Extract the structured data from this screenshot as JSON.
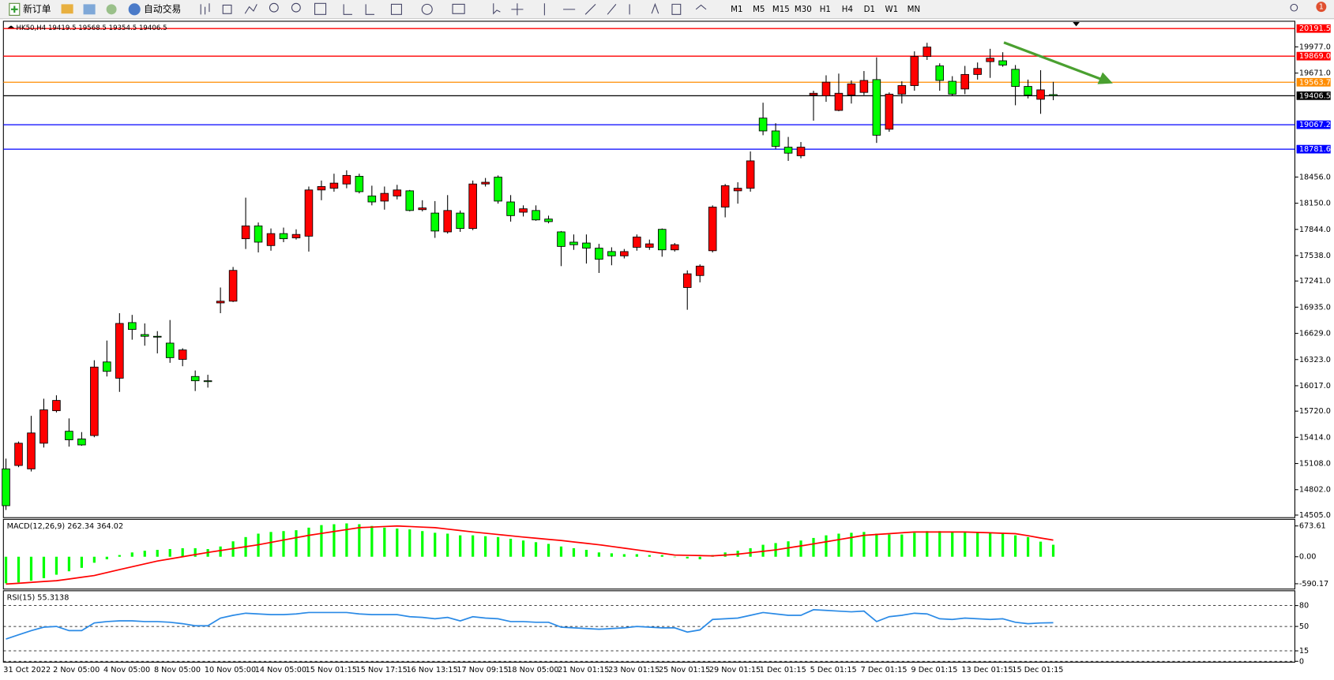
{
  "toolbar": {
    "new_order": "新订单",
    "auto_trading": "自动交易",
    "timeframes": [
      "M1",
      "M5",
      "M15",
      "M30",
      "H1",
      "H4",
      "D1",
      "W1",
      "MN"
    ],
    "notification": "1"
  },
  "chart_data": [
    {
      "type": "candlestick",
      "title": "HK50,H4  19419.5 19568.5 19354.5 19406.5",
      "categories": [
        "31 Oct 2022",
        null,
        null,
        null,
        "2 Nov 05:00",
        null,
        null,
        null,
        "4 Nov 05:00",
        null,
        null,
        null,
        "8 Nov 05:00",
        null,
        null,
        null,
        "10 Nov 05:00",
        null,
        null,
        null,
        "14 Nov 05:00",
        null,
        null,
        null,
        "15 Nov 01:15",
        null,
        null,
        null,
        "15 Nov 17:15",
        null,
        null,
        null,
        "16 Nov 13:15",
        null,
        null,
        null,
        "17 Nov 09:15",
        null,
        null,
        null,
        "18 Nov 05:00",
        null,
        null,
        null,
        "21 Nov 01:15",
        null,
        null,
        null,
        "23 Nov 01:15",
        null,
        null,
        null,
        "25 Nov 01:15",
        null,
        null,
        null,
        "29 Nov 01:15",
        null,
        null,
        null,
        "1 Dec 01:15",
        null,
        null,
        null,
        "5 Dec 01:15",
        null,
        null,
        null,
        "7 Dec 01:15",
        null,
        null,
        null,
        "9 Dec 01:15",
        null,
        null,
        null,
        "13 Dec 01:15",
        null,
        null,
        null,
        "15 Dec 01:15",
        null,
        null,
        null
      ],
      "open": [
        15045,
        15085,
        15045,
        15345,
        15725,
        15485,
        15395,
        15435,
        16295,
        16105,
        16755,
        16615,
        16595,
        16515,
        16325,
        16125,
        16075,
        16985,
        17005,
        17735,
        17885,
        17655,
        17795,
        17745,
        17765,
        18305,
        18325,
        18375,
        18465,
        18235,
        18175,
        18235,
        18295,
        18075,
        18035,
        17815,
        18035,
        17855,
        18375,
        18455,
        18165,
        18045,
        18065,
        17965,
        17815,
        17695,
        17685,
        17625,
        17585,
        17535,
        17635,
        17635,
        17845,
        17605,
        17165,
        17305,
        17595,
        18105,
        18295,
        18325,
        19145,
        18995,
        18805,
        18705,
        19415,
        19405,
        19235,
        19415,
        19445,
        19595,
        19015,
        19425,
        19525,
        19865,
        19755,
        19575,
        19485,
        19655,
        19805,
        19815,
        19715,
        19515,
        19365,
        19419.5
      ],
      "high": [
        15165,
        15365,
        15665,
        15865,
        15905,
        15635,
        15475,
        16315,
        16545,
        16865,
        16845,
        16745,
        16655,
        16785,
        16455,
        16195,
        16145,
        17165,
        17405,
        18215,
        17925,
        17855,
        17865,
        17845,
        18345,
        18415,
        18495,
        18535,
        18495,
        18355,
        18345,
        18365,
        18305,
        18185,
        18175,
        18245,
        18065,
        18415,
        18445,
        18475,
        18245,
        18125,
        18125,
        18005,
        17825,
        17785,
        17785,
        17675,
        17635,
        17615,
        17785,
        17725,
        17855,
        17685,
        17365,
        17435,
        18125,
        18375,
        18395,
        18755,
        19325,
        19085,
        18925,
        18865,
        19465,
        19645,
        19665,
        19585,
        19695,
        19855,
        19445,
        19575,
        19925,
        20025,
        19785,
        19635,
        19755,
        19795,
        19955,
        19915,
        19765,
        19595,
        19705,
        19568.5
      ],
      "low": [
        14565,
        15065,
        15015,
        15295,
        15705,
        15305,
        15315,
        15415,
        16125,
        15945,
        16555,
        16485,
        16395,
        16285,
        16245,
        15955,
        15995,
        16865,
        16995,
        17615,
        17575,
        17595,
        17695,
        17725,
        17585,
        18185,
        18285,
        18325,
        18265,
        18125,
        18075,
        18195,
        18055,
        18055,
        17745,
        17795,
        17815,
        17835,
        18345,
        18145,
        17935,
        17995,
        17945,
        17915,
        17415,
        17605,
        17445,
        17335,
        17425,
        17505,
        17595,
        17605,
        17525,
        17585,
        16905,
        17225,
        17575,
        17985,
        18145,
        18285,
        18945,
        18785,
        18645,
        18675,
        19115,
        19335,
        19225,
        19315,
        19415,
        18855,
        18985,
        19315,
        19465,
        19825,
        19465,
        19405,
        19425,
        19595,
        19615,
        19745,
        19295,
        19375,
        19195,
        19354.5
      ],
      "close": [
        14615,
        15345,
        15465,
        15735,
        15845,
        15385,
        15325,
        16235,
        16185,
        16745,
        16675,
        16595,
        16585,
        16345,
        16435,
        16075,
        16065,
        17005,
        17365,
        17885,
        17695,
        17795,
        17735,
        17785,
        18305,
        18345,
        18385,
        18475,
        18285,
        18165,
        18265,
        18305,
        18065,
        18095,
        17825,
        18065,
        17855,
        18375,
        18395,
        18175,
        18005,
        18085,
        17955,
        17935,
        17645,
        17665,
        17625,
        17495,
        17535,
        17585,
        17755,
        17675,
        17605,
        17665,
        17325,
        17415,
        18105,
        18355,
        18325,
        18645,
        18995,
        18815,
        18735,
        18805,
        19435,
        19565,
        19435,
        19545,
        19585,
        18945,
        19425,
        19525,
        19865,
        19975,
        19585,
        19425,
        19655,
        19725,
        19845,
        19765,
        19515,
        19415,
        19475,
        19406.5
      ],
      "up_color": "#ff0000",
      "down_color": "#00ff00",
      "ylim": [
        14485,
        20257
      ],
      "yticks": [
        {
          "value": 19977,
          "label": "19977.0"
        },
        {
          "value": 19671,
          "label": "19671.0"
        },
        {
          "value": 18456,
          "label": "18456.0"
        },
        {
          "value": 18150,
          "label": "18150.0"
        },
        {
          "value": 17844,
          "label": "17844.0"
        },
        {
          "value": 17538,
          "label": "17538.0"
        },
        {
          "value": 17241,
          "label": "17241.0"
        },
        {
          "value": 16935,
          "label": "16935.0"
        },
        {
          "value": 16629,
          "label": "16629.0"
        },
        {
          "value": 16323,
          "label": "16323.0"
        },
        {
          "value": 16017,
          "label": "16017.0"
        },
        {
          "value": 15720,
          "label": "15720.0"
        },
        {
          "value": 15414,
          "label": "15414.0"
        },
        {
          "value": 15108,
          "label": "15108.0"
        },
        {
          "value": 14802,
          "label": "14802.0"
        },
        {
          "value": 14505,
          "label": "14505.0"
        }
      ],
      "levels": [
        {
          "value": 20191.5,
          "color": "#ff0000"
        },
        {
          "value": 19869,
          "label": "19869.0",
          "color": "#ff0000"
        },
        {
          "value": 19563.7,
          "color": "#ff8c00"
        },
        {
          "value": 19406.5,
          "color": "#000000"
        },
        {
          "value": 19067.2,
          "color": "#0000ff"
        },
        {
          "value": 18781.6,
          "color": "#0000ff"
        }
      ]
    },
    {
      "type": "macd",
      "title": "MACD(12,26,9) 262.34 364.02",
      "histogram": {
        "color": "#00ff00",
        "values": [
          -580,
          -561,
          -524,
          -468,
          -393,
          -318,
          -243,
          -131,
          -56,
          37,
          94,
          131,
          150,
          168,
          187,
          187,
          168,
          224,
          337,
          430,
          505,
          542,
          561,
          580,
          636,
          692,
          711,
          729,
          711,
          673,
          636,
          617,
          598,
          561,
          524,
          505,
          468,
          468,
          449,
          430,
          393,
          355,
          318,
          281,
          224,
          187,
          150,
          94,
          75,
          56,
          56,
          37,
          37,
          0,
          -37,
          -56,
          37,
          94,
          131,
          187,
          262,
          299,
          337,
          355,
          411,
          468,
          505,
          524,
          542,
          505,
          486,
          486,
          524,
          561,
          561,
          542,
          542,
          542,
          524,
          524,
          468,
          430,
          330,
          262.34
        ]
      },
      "signal": {
        "color": "#ff0000",
        "values": [
          -598,
          -580,
          -560,
          -542,
          -524,
          -487,
          -449,
          -411,
          -346,
          -281,
          -219,
          -156,
          -94,
          -47,
          0,
          47,
          94,
          136,
          178,
          220,
          262,
          314,
          365,
          417,
          468,
          510,
          552,
          594,
          636,
          648,
          661,
          673,
          661,
          648,
          636,
          605,
          573,
          542,
          514,
          486,
          458,
          430,
          405,
          380,
          355,
          324,
          293,
          262,
          225,
          188,
          150,
          112,
          75,
          37,
          31,
          25,
          19,
          37,
          56,
          87,
          119,
          150,
          194,
          237,
          281,
          328,
          374,
          421,
          468,
          487,
          505,
          524,
          542,
          542,
          542,
          542,
          542,
          533,
          524,
          514,
          505,
          460,
          410,
          364.02
        ]
      },
      "ylim": [
        -688,
        799
      ],
      "yticks": [
        673.61,
        {
          "value": 0,
          "label": "0.00"
        },
        -590.17
      ]
    },
    {
      "type": "rsi",
      "title": "RSI(15) 55.3138",
      "color": "#2a8ae6",
      "values": [
        32,
        38,
        44,
        49,
        50,
        44,
        44,
        55,
        57,
        58,
        58,
        57,
        57,
        56,
        54,
        51,
        51,
        62,
        66,
        69,
        68,
        67,
        67,
        68,
        70,
        70,
        70,
        70,
        68,
        67,
        67,
        67,
        64,
        63,
        61,
        63,
        58,
        64,
        62,
        61,
        57,
        57,
        56,
        56,
        49,
        48,
        47,
        46,
        47,
        48,
        50,
        49,
        48,
        48,
        42,
        45,
        60,
        61,
        62,
        66,
        70,
        68,
        66,
        66,
        74,
        73,
        72,
        71,
        72,
        57,
        64,
        66,
        69,
        68,
        61,
        60,
        62,
        61,
        60,
        61,
        56,
        54,
        55,
        55.3138
      ],
      "ylim": [
        0,
        100
      ],
      "yticks": [
        80,
        50,
        15,
        0
      ],
      "grid": true
    }
  ]
}
